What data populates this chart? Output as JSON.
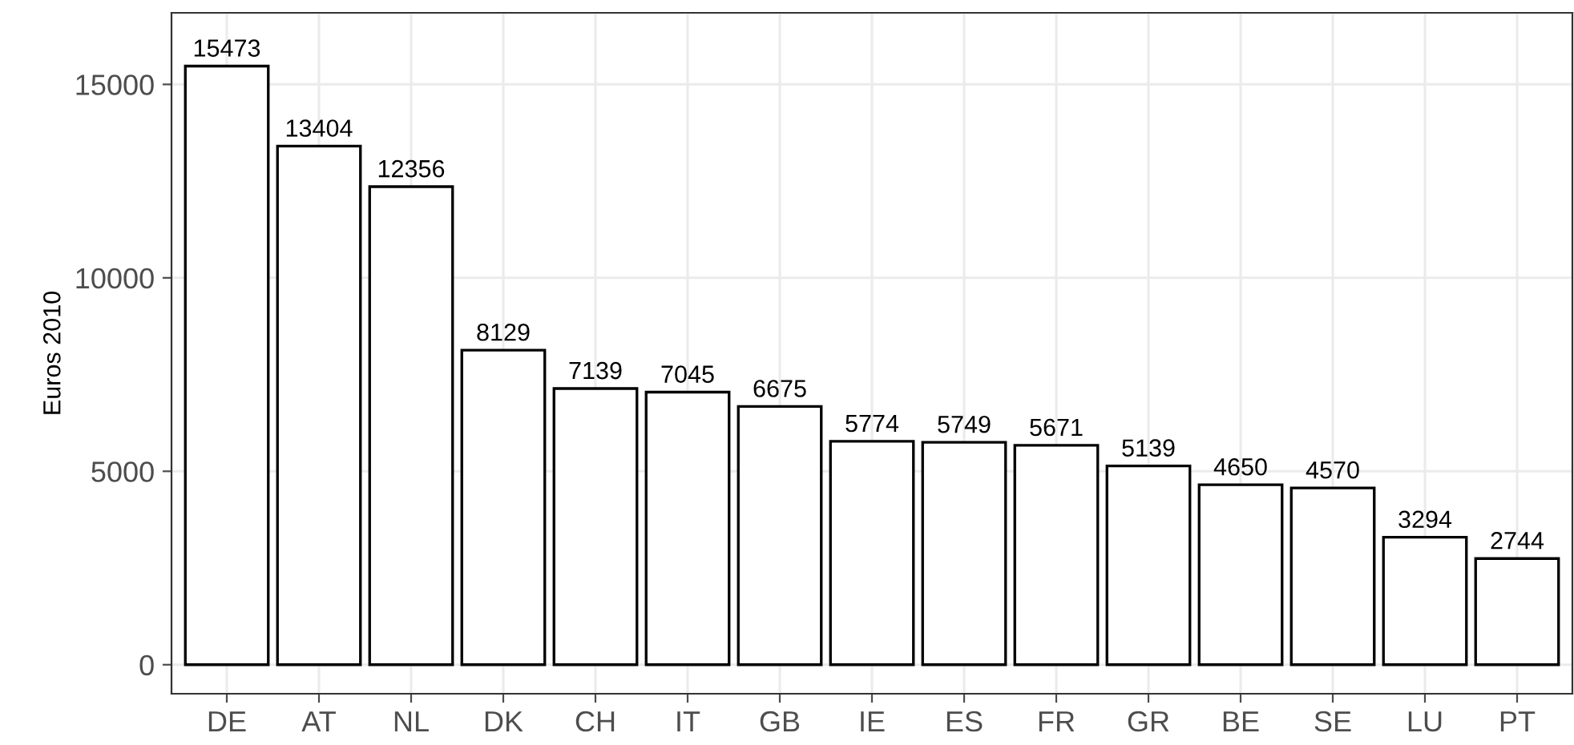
{
  "chart_data": {
    "type": "bar",
    "ylabel": "Euros 2010",
    "categories": [
      "DE",
      "AT",
      "NL",
      "DK",
      "CH",
      "IT",
      "GB",
      "IE",
      "ES",
      "FR",
      "GR",
      "BE",
      "SE",
      "LU",
      "PT"
    ],
    "values": [
      15473,
      13404,
      12356,
      8129,
      7139,
      7045,
      6675,
      5774,
      5749,
      5671,
      5139,
      4650,
      4570,
      3294,
      2744
    ],
    "color": "#ffffff",
    "ylim": [
      -750,
      16850
    ],
    "yticks": [
      0,
      5000,
      10000,
      15000
    ],
    "grid": true,
    "data_labels": true
  }
}
